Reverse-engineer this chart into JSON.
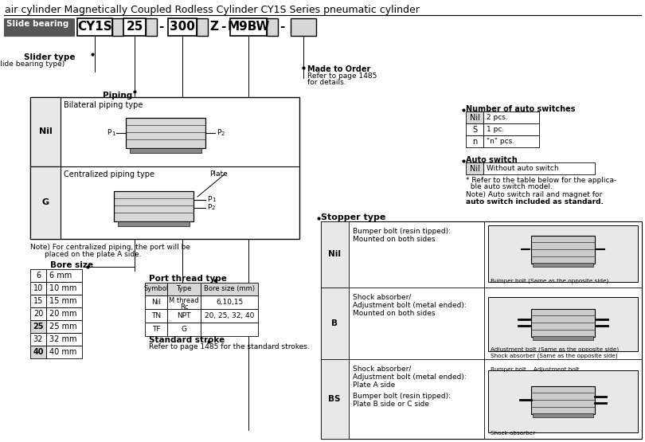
{
  "title": "air cylinder Magnetically Coupled Rodless Cylinder CY1S Series pneumatic cylinder",
  "bg_color": "#ffffff",
  "bore_sizes": [
    [
      "6",
      "6 mm"
    ],
    [
      "10",
      "10 mm"
    ],
    [
      "15",
      "15 mm"
    ],
    [
      "20",
      "20 mm"
    ],
    [
      "25",
      "25 mm"
    ],
    [
      "32",
      "32 mm"
    ],
    [
      "40",
      "40 mm"
    ]
  ],
  "port_thread_rows": [
    [
      "Nil",
      "M thread\nRc",
      "6,10,15"
    ],
    [
      "TN",
      "NPT",
      "20, 25, 32, 40"
    ],
    [
      "TF",
      "G",
      ""
    ]
  ],
  "auto_switch_nil": "Without auto switch",
  "num_auto_switches": [
    [
      "Nil",
      "2 pcs."
    ],
    [
      "S",
      "1 pc."
    ],
    [
      "n",
      "\"n\" pcs."
    ]
  ],
  "stopper_rows": [
    {
      "label": "Nil",
      "text1": "Bumper bolt (resin tipped):",
      "text2": "Mounted on both sides",
      "text3": "",
      "text4": "",
      "caption1": "Bumper bolt (Same as the opposite side)",
      "caption2": ""
    },
    {
      "label": "B",
      "text1": "Shock absorber/",
      "text2": "Adjustment bolt (metal ended):",
      "text3": "Mounted on both sides",
      "text4": "",
      "caption1": "Adjustment bolt (Same as the opposite side)",
      "caption2": "Shock absorber (Same as the opposite side)"
    },
    {
      "label": "BS",
      "text1": "Shock absorber/",
      "text2": "Adjustment bolt (metal ended):",
      "text3": "Plate A side",
      "text4_blank": "",
      "text5": "Bumper bolt (resin tipped):",
      "text6": "Plate B side or C side",
      "caption1": "Bumper bolt    Adjustment bolt",
      "caption2": "Shock absorber"
    }
  ]
}
